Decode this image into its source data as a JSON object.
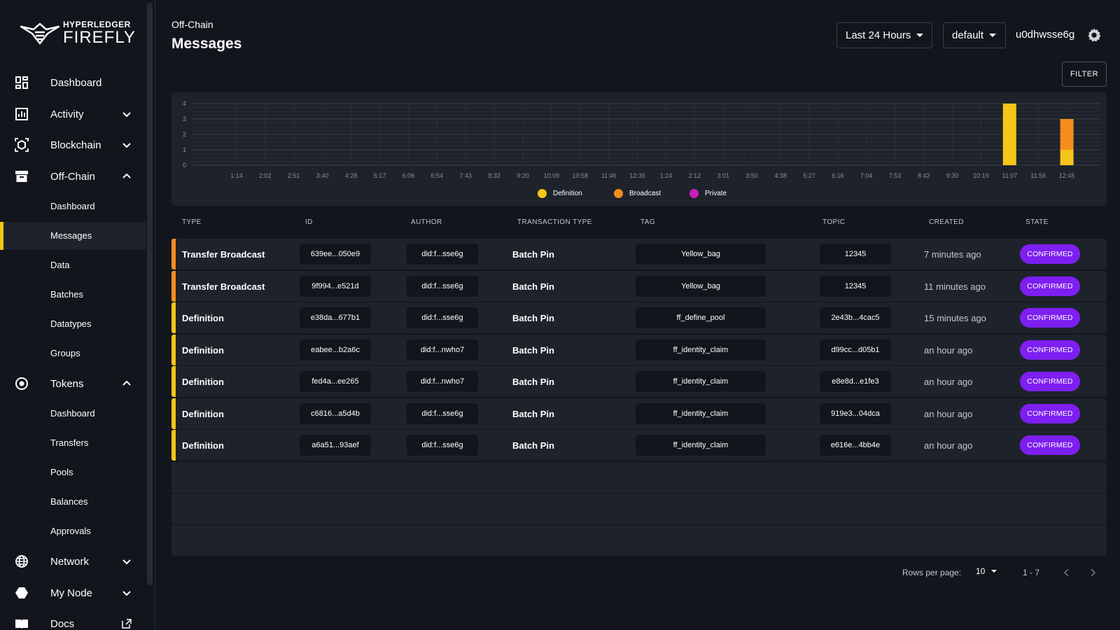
{
  "app": {
    "logo_top": "HYPERLEDGER",
    "logo_main": "FIREFLY"
  },
  "sidebar": {
    "dashboard": "Dashboard",
    "activity": "Activity",
    "blockchain": "Blockchain",
    "offchain": "Off-Chain",
    "offchain_items": [
      "Dashboard",
      "Messages",
      "Data",
      "Batches",
      "Datatypes",
      "Groups"
    ],
    "tokens": "Tokens",
    "tokens_items": [
      "Dashboard",
      "Transfers",
      "Pools",
      "Balances",
      "Approvals"
    ],
    "network": "Network",
    "mynode": "My Node",
    "docs": "Docs",
    "active_item": "Messages"
  },
  "header": {
    "breadcrumb": "Off-Chain",
    "title": "Messages",
    "time_range": "Last 24 Hours",
    "namespace": "default",
    "user": "u0dhwsse6g",
    "filter_label": "FILTER"
  },
  "chart_data": {
    "type": "bar",
    "stacked": true,
    "categories": [
      "1:14",
      "2:02",
      "2:51",
      "3:40",
      "4:28",
      "5:17",
      "6:06",
      "6:54",
      "7:43",
      "8:32",
      "9:20",
      "10:09",
      "10:58",
      "11:46",
      "12:35",
      "1:24",
      "2:12",
      "3:01",
      "3:50",
      "4:38",
      "5:27",
      "6:16",
      "7:04",
      "7:53",
      "8:42",
      "9:30",
      "10:19",
      "11:07",
      "11:56",
      "12:45"
    ],
    "series": [
      {
        "name": "Definition",
        "values": [
          0,
          0,
          0,
          0,
          0,
          0,
          0,
          0,
          0,
          0,
          0,
          0,
          0,
          0,
          0,
          0,
          0,
          0,
          0,
          0,
          0,
          0,
          0,
          0,
          0,
          0,
          0,
          4,
          0,
          1
        ]
      },
      {
        "name": "Broadcast",
        "values": [
          0,
          0,
          0,
          0,
          0,
          0,
          0,
          0,
          0,
          0,
          0,
          0,
          0,
          0,
          0,
          0,
          0,
          0,
          0,
          0,
          0,
          0,
          0,
          0,
          0,
          0,
          0,
          0,
          0,
          2
        ]
      },
      {
        "name": "Private",
        "values": [
          0,
          0,
          0,
          0,
          0,
          0,
          0,
          0,
          0,
          0,
          0,
          0,
          0,
          0,
          0,
          0,
          0,
          0,
          0,
          0,
          0,
          0,
          0,
          0,
          0,
          0,
          0,
          0,
          0,
          0
        ]
      }
    ],
    "ylim": [
      0,
      4
    ],
    "yticks": [
      0,
      1,
      2,
      3,
      4
    ],
    "grid": true,
    "legend_position": "bottom"
  },
  "colors": {
    "definition": "#f5c518",
    "broadcast": "#f78c1e",
    "private": "#c91fbb",
    "state": "#7d1ff0"
  },
  "table": {
    "columns": [
      "TYPE",
      "ID",
      "AUTHOR",
      "TRANSACTION TYPE",
      "TAG",
      "TOPIC",
      "CREATED",
      "STATE"
    ],
    "rows": [
      {
        "type": "Transfer Broadcast",
        "kind": "broadcast",
        "id": "639ee...050e9",
        "author": "did:f...sse6g",
        "tx": "Batch Pin",
        "tag": "Yellow_bag",
        "topic": "12345",
        "created": "7 minutes ago",
        "state": "CONFIRMED"
      },
      {
        "type": "Transfer Broadcast",
        "kind": "broadcast",
        "id": "9f994...e521d",
        "author": "did:f...sse6g",
        "tx": "Batch Pin",
        "tag": "Yellow_bag",
        "topic": "12345",
        "created": "11 minutes ago",
        "state": "CONFIRMED"
      },
      {
        "type": "Definition",
        "kind": "definition",
        "id": "e38da...677b1",
        "author": "did:f...sse6g",
        "tx": "Batch Pin",
        "tag": "ff_define_pool",
        "topic": "2e43b...4cac5",
        "created": "15 minutes ago",
        "state": "CONFIRMED"
      },
      {
        "type": "Definition",
        "kind": "definition",
        "id": "eabee...b2a6c",
        "author": "did:f...nwho7",
        "tx": "Batch Pin",
        "tag": "ff_identity_claim",
        "topic": "d99cc...d05b1",
        "created": "an hour ago",
        "state": "CONFIRMED"
      },
      {
        "type": "Definition",
        "kind": "definition",
        "id": "fed4a...ee265",
        "author": "did:f...nwho7",
        "tx": "Batch Pin",
        "tag": "ff_identity_claim",
        "topic": "e8e8d...e1fe3",
        "created": "an hour ago",
        "state": "CONFIRMED"
      },
      {
        "type": "Definition",
        "kind": "definition",
        "id": "c6816...a5d4b",
        "author": "did:f...sse6g",
        "tx": "Batch Pin",
        "tag": "ff_identity_claim",
        "topic": "919e3...04dca",
        "created": "an hour ago",
        "state": "CONFIRMED"
      },
      {
        "type": "Definition",
        "kind": "definition",
        "id": "a6a51...93aef",
        "author": "did:f...sse6g",
        "tx": "Batch Pin",
        "tag": "ff_identity_claim",
        "topic": "e616e...4bb4e",
        "created": "an hour ago",
        "state": "CONFIRMED"
      }
    ]
  },
  "pagination": {
    "rows_label": "Rows per page:",
    "rows_per_page": "10",
    "range": "1 - 7"
  }
}
